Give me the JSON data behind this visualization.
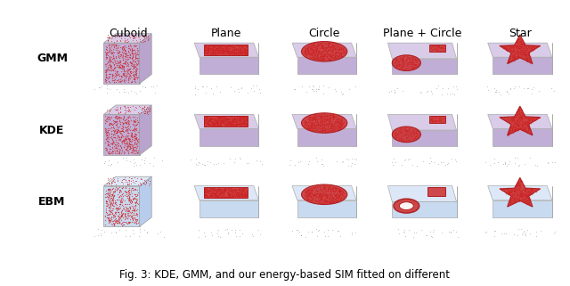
{
  "col_labels": [
    "Cuboid",
    "Plane",
    "Circle",
    "Plane + Circle",
    "Star"
  ],
  "row_labels": [
    "GMM",
    "KDE",
    "EBM"
  ],
  "caption": "Fig. 3: KDE, GMM, and our energy-based SIM fitted on different",
  "bg_color": "#ffffff",
  "shape_color_fill": "#cc3333",
  "shape_color_dot": "#cc2222",
  "shape_edge": "#aa1111",
  "slab_top": "#d8cce8",
  "slab_front": "#c0aed6",
  "slab_right": "#b8a4cc",
  "slab_top_ebm": "#dce8f8",
  "slab_front_ebm": "#c8daf0",
  "slab_right_ebm": "#b8ccec",
  "bg_gmm_kde": "#d8cce4",
  "bg_ebm": "#d8e8f8",
  "n_rows": 3,
  "n_cols": 5,
  "col_label_fontsize": 9,
  "row_label_fontsize": 9,
  "caption_fontsize": 8.5,
  "fig_width": 6.4,
  "fig_height": 3.21
}
